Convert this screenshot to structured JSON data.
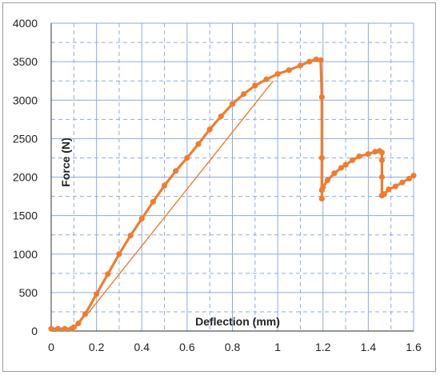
{
  "chart_data": {
    "type": "scatter",
    "title": "",
    "xlabel": "Deflection (mm)",
    "ylabel": "Force (N)",
    "xlim": [
      0,
      1.6
    ],
    "ylim": [
      0,
      4000
    ],
    "xticks": [
      0,
      0.2,
      0.4,
      0.6,
      0.8,
      1,
      1.2,
      1.4,
      1.6
    ],
    "xtick_labels": [
      "0",
      "0.2",
      "0.4",
      "0.6",
      "0.8",
      "1",
      "1.2",
      "1.4",
      "1.6"
    ],
    "yticks": [
      0,
      500,
      1000,
      1500,
      2000,
      2500,
      3000,
      3500,
      4000
    ],
    "ytick_labels": [
      "0",
      "500",
      "1000",
      "1500",
      "2000",
      "2500",
      "3000",
      "3500",
      "4000"
    ],
    "grid": true,
    "legend": "none",
    "series_color": "#ED7D31",
    "grid_color": "#8FAADC",
    "series": [
      {
        "name": "",
        "style": "marker-line",
        "x": [
          0.0,
          0.03,
          0.06,
          0.09,
          0.1,
          0.12,
          0.15,
          0.2,
          0.25,
          0.3,
          0.35,
          0.4,
          0.45,
          0.5,
          0.55,
          0.6,
          0.65,
          0.7,
          0.75,
          0.8,
          0.85,
          0.9,
          0.95,
          1.0,
          1.05,
          1.1,
          1.14,
          1.17,
          1.19,
          1.195,
          1.195,
          1.195,
          1.195,
          1.2,
          1.22,
          1.25,
          1.28,
          1.3,
          1.33,
          1.36,
          1.4,
          1.43,
          1.45,
          1.46,
          1.46,
          1.46,
          1.46,
          1.47,
          1.49,
          1.52,
          1.55,
          1.58,
          1.6
        ],
        "y": [
          30,
          30,
          30,
          30,
          50,
          100,
          220,
          480,
          740,
          1000,
          1240,
          1460,
          1680,
          1890,
          2080,
          2250,
          2430,
          2620,
          2790,
          2950,
          3080,
          3190,
          3270,
          3340,
          3390,
          3450,
          3500,
          3530,
          3520,
          3040,
          2250,
          1720,
          1830,
          1870,
          1960,
          2050,
          2120,
          2160,
          2220,
          2270,
          2300,
          2330,
          2340,
          2320,
          2220,
          2000,
          1760,
          1780,
          1840,
          1880,
          1930,
          1980,
          2020
        ]
      },
      {
        "name": "",
        "style": "line",
        "x": [
          0.16,
          0.98
        ],
        "y": [
          220,
          3250
        ]
      }
    ]
  }
}
